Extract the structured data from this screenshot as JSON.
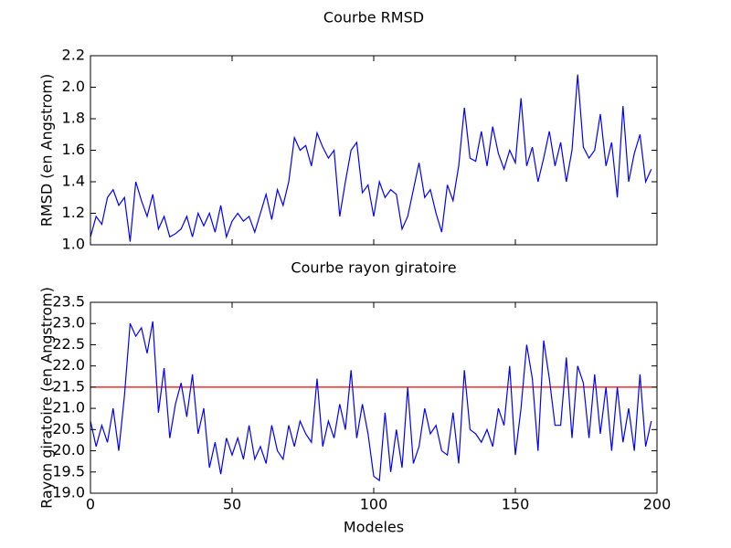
{
  "chart_data": [
    {
      "type": "line",
      "title": "Courbe RMSD",
      "y_label": "RMSD (en Angstrom)",
      "x": [
        0,
        2,
        4,
        6,
        8,
        10,
        12,
        14,
        16,
        18,
        20,
        22,
        24,
        26,
        28,
        30,
        32,
        34,
        36,
        38,
        40,
        42,
        44,
        46,
        48,
        50,
        52,
        54,
        56,
        58,
        60,
        62,
        64,
        66,
        68,
        70,
        72,
        74,
        76,
        78,
        80,
        82,
        84,
        86,
        88,
        90,
        92,
        94,
        96,
        98,
        100,
        102,
        104,
        106,
        108,
        110,
        112,
        114,
        116,
        118,
        120,
        122,
        124,
        126,
        128,
        130,
        132,
        134,
        136,
        138,
        140,
        142,
        144,
        146,
        148,
        150,
        152,
        154,
        156,
        158,
        160,
        162,
        164,
        166,
        168,
        170,
        172,
        174,
        176,
        178,
        180,
        182,
        184,
        186,
        188,
        190,
        192,
        194,
        196,
        198
      ],
      "series": [
        {
          "name": "RMSD",
          "color": "#0000ff",
          "values": [
            1.05,
            1.18,
            1.13,
            1.3,
            1.35,
            1.25,
            1.3,
            1.02,
            1.4,
            1.28,
            1.18,
            1.32,
            1.1,
            1.18,
            1.05,
            1.07,
            1.1,
            1.18,
            1.05,
            1.2,
            1.12,
            1.2,
            1.08,
            1.25,
            1.05,
            1.15,
            1.2,
            1.15,
            1.18,
            1.08,
            1.2,
            1.32,
            1.16,
            1.35,
            1.25,
            1.4,
            1.68,
            1.6,
            1.63,
            1.5,
            1.71,
            1.62,
            1.55,
            1.6,
            1.18,
            1.4,
            1.6,
            1.65,
            1.33,
            1.38,
            1.18,
            1.4,
            1.3,
            1.35,
            1.32,
            1.1,
            1.18,
            1.35,
            1.52,
            1.3,
            1.35,
            1.2,
            1.08,
            1.38,
            1.28,
            1.5,
            1.87,
            1.55,
            1.53,
            1.72,
            1.5,
            1.75,
            1.58,
            1.48,
            1.6,
            1.52,
            1.93,
            1.5,
            1.62,
            1.4,
            1.55,
            1.72,
            1.5,
            1.65,
            1.4,
            1.6,
            2.08,
            1.62,
            1.55,
            1.6,
            1.83,
            1.5,
            1.65,
            1.3,
            1.88,
            1.4,
            1.58,
            1.7,
            1.4,
            1.48
          ]
        }
      ],
      "xlim": [
        0,
        200
      ],
      "xticks": [
        0,
        50,
        100,
        150,
        200
      ],
      "xticklabels": false,
      "ylim": [
        1.0,
        2.2
      ],
      "yticks": [
        {
          "value": 1.0,
          "label": "1.0"
        },
        1.2,
        1.4,
        1.6,
        1.8,
        {
          "value": 2.0,
          "label": "2.0"
        },
        2.2
      ]
    },
    {
      "type": "line",
      "title": "Courbe rayon giratoire",
      "x_label": "Modeles",
      "y_label": "Rayon giratoire (en Angstrom)",
      "x": [
        0,
        2,
        4,
        6,
        8,
        10,
        12,
        14,
        16,
        18,
        20,
        22,
        24,
        26,
        28,
        30,
        32,
        34,
        36,
        38,
        40,
        42,
        44,
        46,
        48,
        50,
        52,
        54,
        56,
        58,
        60,
        62,
        64,
        66,
        68,
        70,
        72,
        74,
        76,
        78,
        80,
        82,
        84,
        86,
        88,
        90,
        92,
        94,
        96,
        98,
        100,
        102,
        104,
        106,
        108,
        110,
        112,
        114,
        116,
        118,
        120,
        122,
        124,
        126,
        128,
        130,
        132,
        134,
        136,
        138,
        140,
        142,
        144,
        146,
        148,
        150,
        152,
        154,
        156,
        158,
        160,
        162,
        164,
        166,
        168,
        170,
        172,
        174,
        176,
        178,
        180,
        182,
        184,
        186,
        188,
        190,
        192,
        194,
        196,
        198
      ],
      "series": [
        {
          "name": "Rayon giratoire",
          "color": "#0000ff",
          "values": [
            20.7,
            20.1,
            20.6,
            20.2,
            21.0,
            20.0,
            21.3,
            23.0,
            22.7,
            22.9,
            22.3,
            23.05,
            20.9,
            21.95,
            20.3,
            21.1,
            21.6,
            20.8,
            21.8,
            20.4,
            21.0,
            19.6,
            20.2,
            19.45,
            20.3,
            19.9,
            20.3,
            19.8,
            20.6,
            19.8,
            20.1,
            19.7,
            20.6,
            20.0,
            19.8,
            20.6,
            20.1,
            20.7,
            20.4,
            20.2,
            21.7,
            20.1,
            20.7,
            20.3,
            21.1,
            20.5,
            21.9,
            20.3,
            21.1,
            20.4,
            19.4,
            19.3,
            20.9,
            19.5,
            20.5,
            19.6,
            21.5,
            19.7,
            20.1,
            21.0,
            20.4,
            20.6,
            20.0,
            19.9,
            20.9,
            19.7,
            21.9,
            20.5,
            20.4,
            20.2,
            20.5,
            20.1,
            21.0,
            20.6,
            22.0,
            19.9,
            21.0,
            22.5,
            21.7,
            20.0,
            22.6,
            21.7,
            20.6,
            20.6,
            22.2,
            20.3,
            22.0,
            21.6,
            20.3,
            21.8,
            20.4,
            21.5,
            20.0,
            21.5,
            20.2,
            21.0,
            20.0,
            21.8,
            20.1,
            20.7
          ]
        }
      ],
      "hline": 21.5,
      "hline_color": "#ff0000",
      "xlim": [
        0,
        200
      ],
      "xticks": [
        0,
        50,
        100,
        150,
        200
      ],
      "xticklabels": true,
      "ylim": [
        19.0,
        23.5
      ],
      "yticks": [
        {
          "value": 19.0,
          "label": "19.0"
        },
        19.5,
        {
          "value": 20.0,
          "label": "20.0"
        },
        20.5,
        {
          "value": 21.0,
          "label": "21.0"
        },
        21.5,
        {
          "value": 22.0,
          "label": "22.0"
        },
        22.5,
        {
          "value": 23.0,
          "label": "23.0"
        },
        23.5
      ]
    }
  ]
}
